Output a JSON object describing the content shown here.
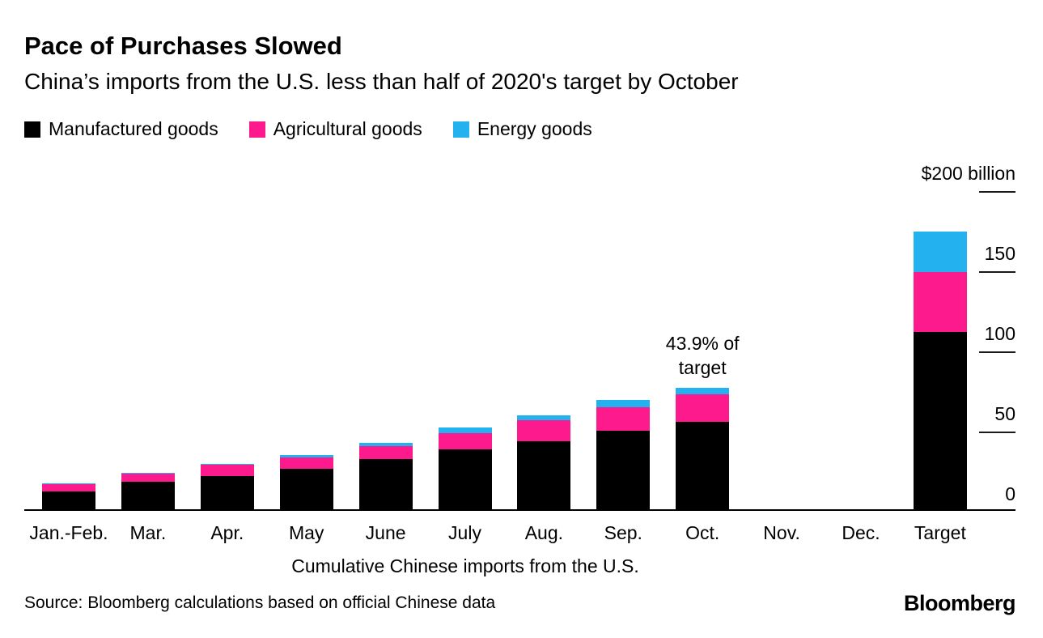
{
  "header": {
    "title": "Pace of Purchases Slowed",
    "subtitle": "China’s imports from the U.S. less than half of 2020's target by October"
  },
  "chart_data": {
    "type": "bar",
    "stacked": true,
    "title": "Pace of Purchases Slowed",
    "subtitle": "China’s imports from the U.S. less than half of 2020's target by October",
    "categories": [
      "Jan.-Feb.",
      "Mar.",
      "Apr.",
      "May",
      "June",
      "July",
      "Aug.",
      "Sep.",
      "Oct.",
      "Nov.",
      "Dec.",
      "Target"
    ],
    "series": [
      {
        "name": "Manufactured goods",
        "color": "#000000",
        "values": [
          11.5,
          17.5,
          21,
          26,
          32,
          38,
          43,
          49.5,
          55,
          0,
          0,
          111
        ]
      },
      {
        "name": "Agricultural goods",
        "color": "#fc1a8c",
        "values": [
          4.5,
          5,
          7.5,
          7,
          8,
          10,
          13,
          14.5,
          17,
          0,
          0,
          37.5
        ]
      },
      {
        "name": "Energy goods",
        "color": "#23b2ef",
        "values": [
          0.5,
          0.5,
          0.5,
          1.5,
          2,
          3.5,
          3,
          4.5,
          4.2,
          0,
          0,
          25
        ]
      }
    ],
    "ylim": [
      0,
      200
    ],
    "yticks": [
      {
        "value": 200,
        "label": "$200 billion"
      },
      {
        "value": 150,
        "label": "150"
      },
      {
        "value": 100,
        "label": "100"
      },
      {
        "value": 50,
        "label": "50"
      },
      {
        "value": 0,
        "label": "0"
      }
    ],
    "xlabel": "Cumulative Chinese imports from the U.S.",
    "annotation": {
      "text_lines": [
        "43.9% of",
        "target"
      ],
      "category": "Oct."
    },
    "legend_position": "top",
    "grid": false
  },
  "footer": {
    "source": "Source: Bloomberg calculations based on official Chinese data",
    "logo": "Bloomberg"
  }
}
